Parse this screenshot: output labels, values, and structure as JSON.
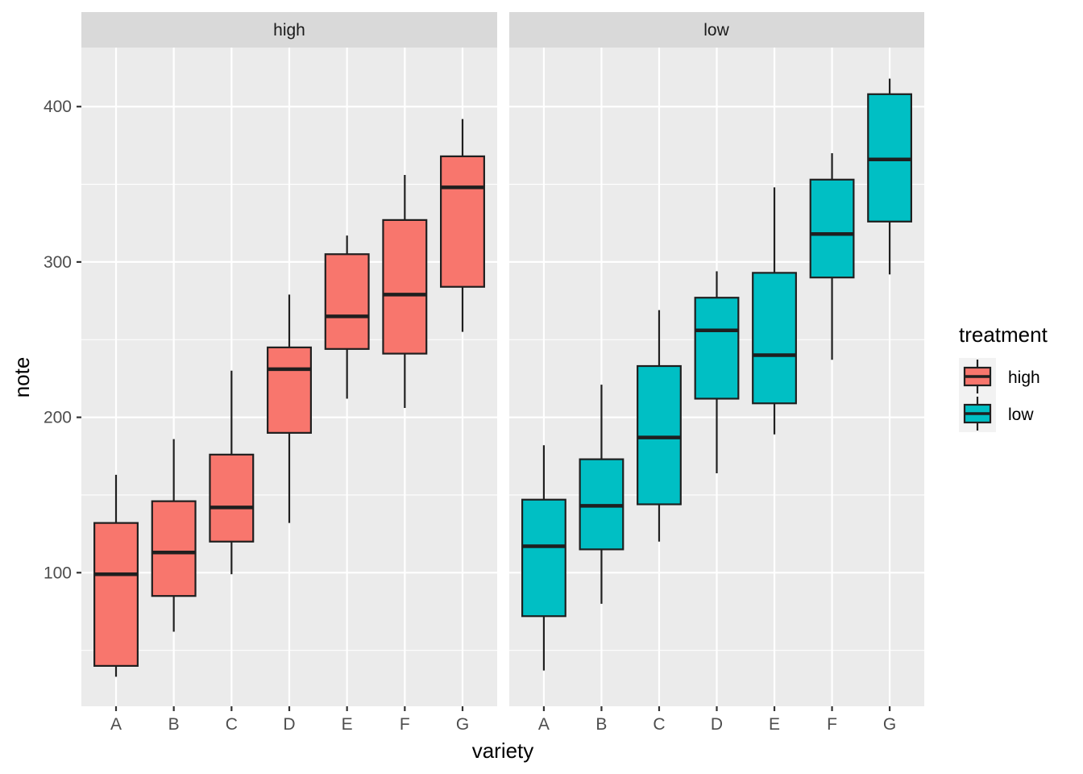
{
  "chart_data": {
    "type": "boxplot",
    "xlabel": "variety",
    "ylabel": "note",
    "ylim": [
      14,
      438
    ],
    "y_ticks": [
      100,
      200,
      300,
      400
    ],
    "grid": true,
    "categories": [
      "A",
      "B",
      "C",
      "D",
      "E",
      "F",
      "G"
    ],
    "legend": {
      "title": "treatment",
      "position": "right",
      "entries": [
        {
          "label": "high",
          "color": "#F8766D"
        },
        {
          "label": "low",
          "color": "#00BFC4"
        }
      ]
    },
    "facets": [
      {
        "label": "high",
        "fill": "#F8766D",
        "boxes": [
          {
            "category": "A",
            "min": 33,
            "q1": 40,
            "median": 99,
            "q3": 132,
            "max": 163
          },
          {
            "category": "B",
            "min": 62,
            "q1": 85,
            "median": 113,
            "q3": 146,
            "max": 186
          },
          {
            "category": "C",
            "min": 99,
            "q1": 120,
            "median": 142,
            "q3": 176,
            "max": 230
          },
          {
            "category": "D",
            "min": 132,
            "q1": 190,
            "median": 231,
            "q3": 245,
            "max": 279
          },
          {
            "category": "E",
            "min": 212,
            "q1": 244,
            "median": 265,
            "q3": 305,
            "max": 317
          },
          {
            "category": "F",
            "min": 206,
            "q1": 241,
            "median": 279,
            "q3": 327,
            "max": 356
          },
          {
            "category": "G",
            "min": 255,
            "q1": 284,
            "median": 348,
            "q3": 368,
            "max": 392
          }
        ]
      },
      {
        "label": "low",
        "fill": "#00BFC4",
        "boxes": [
          {
            "category": "A",
            "min": 37,
            "q1": 72,
            "median": 117,
            "q3": 147,
            "max": 182
          },
          {
            "category": "B",
            "min": 80,
            "q1": 115,
            "median": 143,
            "q3": 173,
            "max": 221
          },
          {
            "category": "C",
            "min": 120,
            "q1": 144,
            "median": 187,
            "q3": 233,
            "max": 269
          },
          {
            "category": "D",
            "min": 164,
            "q1": 212,
            "median": 256,
            "q3": 277,
            "max": 294
          },
          {
            "category": "E",
            "min": 189,
            "q1": 209,
            "median": 240,
            "q3": 293,
            "max": 348
          },
          {
            "category": "F",
            "min": 237,
            "q1": 290,
            "median": 318,
            "q3": 353,
            "max": 370
          },
          {
            "category": "G",
            "min": 292,
            "q1": 326,
            "median": 366,
            "q3": 408,
            "max": 418
          }
        ]
      }
    ]
  }
}
